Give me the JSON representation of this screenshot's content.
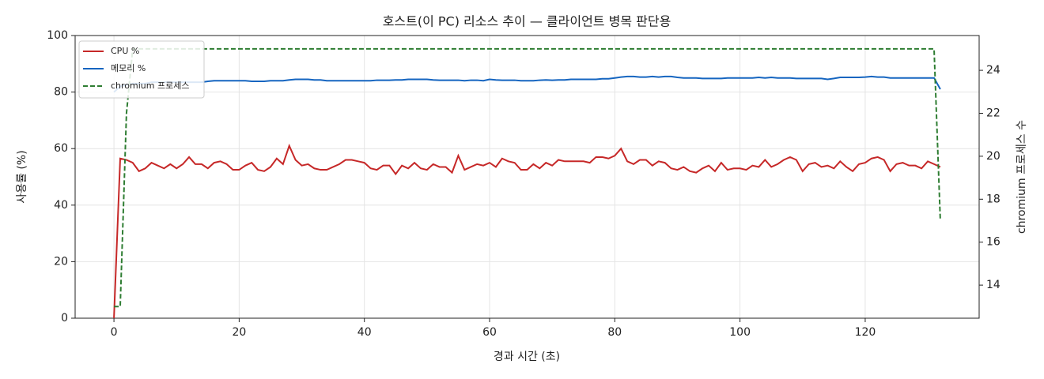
{
  "chart_data": {
    "type": "line",
    "title": "호스트(이 PC) 리소스 추이 — 클라이언트 병목 판단용",
    "xlabel": "경과 시간 (초)",
    "ylabel": "사용률 (%)",
    "y2label": "chromium 프로세스 수",
    "x": [
      0,
      1,
      2,
      3,
      4,
      5,
      6,
      7,
      8,
      9,
      10,
      11,
      12,
      13,
      14,
      15,
      16,
      17,
      18,
      19,
      20,
      21,
      22,
      23,
      24,
      25,
      26,
      27,
      28,
      29,
      30,
      31,
      32,
      33,
      34,
      35,
      36,
      37,
      38,
      39,
      40,
      41,
      42,
      43,
      44,
      45,
      46,
      47,
      48,
      49,
      50,
      51,
      52,
      53,
      54,
      55,
      56,
      57,
      58,
      59,
      60,
      61,
      62,
      63,
      64,
      65,
      66,
      67,
      68,
      69,
      70,
      71,
      72,
      73,
      74,
      75,
      76,
      77,
      78,
      79,
      80,
      81,
      82,
      83,
      84,
      85,
      86,
      87,
      88,
      89,
      90,
      91,
      92,
      93,
      94,
      95,
      96,
      97,
      98,
      99,
      100,
      101,
      102,
      103,
      104,
      105,
      106,
      107,
      108,
      109,
      110,
      111,
      112,
      113,
      114,
      115,
      116,
      117,
      118,
      119,
      120,
      121,
      122,
      123,
      124,
      125,
      126,
      127,
      128,
      129,
      130,
      131,
      132
    ],
    "series": [
      {
        "name": "CPU %",
        "color": "#c62828",
        "dash": false,
        "values": [
          0,
          56.5,
          56,
          55,
          52,
          53,
          55,
          54,
          53,
          54.5,
          53,
          54.5,
          57,
          54.5,
          54.5,
          53,
          55,
          55.5,
          54.5,
          52.5,
          52.5,
          54,
          55,
          52.5,
          52,
          53.5,
          56.5,
          54.5,
          61,
          56,
          54,
          54.5,
          53,
          52.5,
          52.5,
          53.5,
          54.5,
          56,
          56,
          55.5,
          55,
          53,
          52.5,
          54,
          54,
          51,
          54,
          53,
          55,
          53,
          52.5,
          54.5,
          53.5,
          53.5,
          51.5,
          57.5,
          52.5,
          53.5,
          54.5,
          54,
          55,
          53.5,
          56.5,
          55.5,
          55,
          52.5,
          52.5,
          54.5,
          53,
          55,
          54,
          56,
          55.5,
          55.5,
          55.5,
          55.5,
          55,
          57,
          57,
          56.5,
          57.5,
          60,
          55.5,
          54.5,
          56,
          56,
          54,
          55.5,
          55,
          53,
          52.5,
          53.5,
          52,
          51.5,
          53,
          54,
          52,
          55,
          52.5,
          53,
          53,
          52.5,
          54,
          53.5,
          56,
          53.5,
          54.5,
          56,
          57,
          56,
          52,
          54.5,
          55,
          53.5,
          54,
          53,
          55.5,
          53.5,
          52,
          54.5,
          55,
          56.5,
          57,
          56,
          52,
          54.5,
          55,
          54,
          54,
          53,
          55.5,
          54.5,
          53.5
        ]
      },
      {
        "name": "메모리 %",
        "color": "#1565c0",
        "dash": false,
        "values": [
          80,
          82,
          82.5,
          83,
          83,
          83,
          83.5,
          83.5,
          83.5,
          83.5,
          83.5,
          83.5,
          83.5,
          83.5,
          83.5,
          83.8,
          84,
          84,
          84,
          84,
          84,
          84,
          83.8,
          83.8,
          83.8,
          84,
          84,
          84,
          84.3,
          84.5,
          84.5,
          84.5,
          84.3,
          84.3,
          84,
          84,
          84,
          84,
          84,
          84,
          84,
          84,
          84.2,
          84.2,
          84.2,
          84.3,
          84.3,
          84.5,
          84.5,
          84.5,
          84.5,
          84.3,
          84.2,
          84.2,
          84.2,
          84.2,
          84,
          84.2,
          84.2,
          84,
          84.5,
          84.3,
          84.2,
          84.2,
          84.2,
          84,
          84,
          84,
          84.2,
          84.3,
          84.2,
          84.3,
          84.3,
          84.5,
          84.5,
          84.5,
          84.5,
          84.5,
          84.7,
          84.7,
          85,
          85.3,
          85.5,
          85.5,
          85.3,
          85.3,
          85.5,
          85.3,
          85.5,
          85.5,
          85.2,
          85,
          85,
          85,
          84.8,
          84.8,
          84.8,
          84.8,
          85,
          85,
          85,
          85,
          85,
          85.2,
          85,
          85.2,
          85,
          85,
          85,
          84.8,
          84.8,
          84.8,
          84.8,
          84.8,
          84.5,
          84.8,
          85.2,
          85.2,
          85.2,
          85.2,
          85.3,
          85.5,
          85.3,
          85.3,
          85,
          85,
          85,
          85,
          85,
          85,
          85,
          85,
          81
        ]
      },
      {
        "name": "chromium 프로세스",
        "color": "#2e7d32",
        "dash": true,
        "axis": "y2",
        "values": [
          13,
          13,
          22,
          25,
          25,
          25,
          25,
          25,
          25,
          25,
          25,
          25,
          25,
          25,
          25,
          25,
          25,
          25,
          25,
          25,
          25,
          25,
          25,
          25,
          25,
          25,
          25,
          25,
          25,
          25,
          25,
          25,
          25,
          25,
          25,
          25,
          25,
          25,
          25,
          25,
          25,
          25,
          25,
          25,
          25,
          25,
          25,
          25,
          25,
          25,
          25,
          25,
          25,
          25,
          25,
          25,
          25,
          25,
          25,
          25,
          25,
          25,
          25,
          25,
          25,
          25,
          25,
          25,
          25,
          25,
          25,
          25,
          25,
          25,
          25,
          25,
          25,
          25,
          25,
          25,
          25,
          25,
          25,
          25,
          25,
          25,
          25,
          25,
          25,
          25,
          25,
          25,
          25,
          25,
          25,
          25,
          25,
          25,
          25,
          25,
          25,
          25,
          25,
          25,
          25,
          25,
          25,
          25,
          25,
          25,
          25,
          25,
          25,
          25,
          25,
          25,
          25,
          25,
          25,
          25,
          25,
          25,
          25,
          25,
          25,
          25,
          25,
          25,
          25,
          25,
          25,
          25,
          17
        ]
      }
    ],
    "xlim": [
      -6.2,
      138.2
    ],
    "xticks": [
      0,
      20,
      40,
      60,
      80,
      100,
      120
    ],
    "ylim": [
      0,
      100
    ],
    "yticks": [
      0,
      20,
      40,
      60,
      80,
      100
    ],
    "y2lim": [
      12.46,
      25.62
    ],
    "y2ticks": [
      14,
      16,
      18,
      20,
      22,
      24
    ],
    "grid": true,
    "legend": "upper-left"
  }
}
